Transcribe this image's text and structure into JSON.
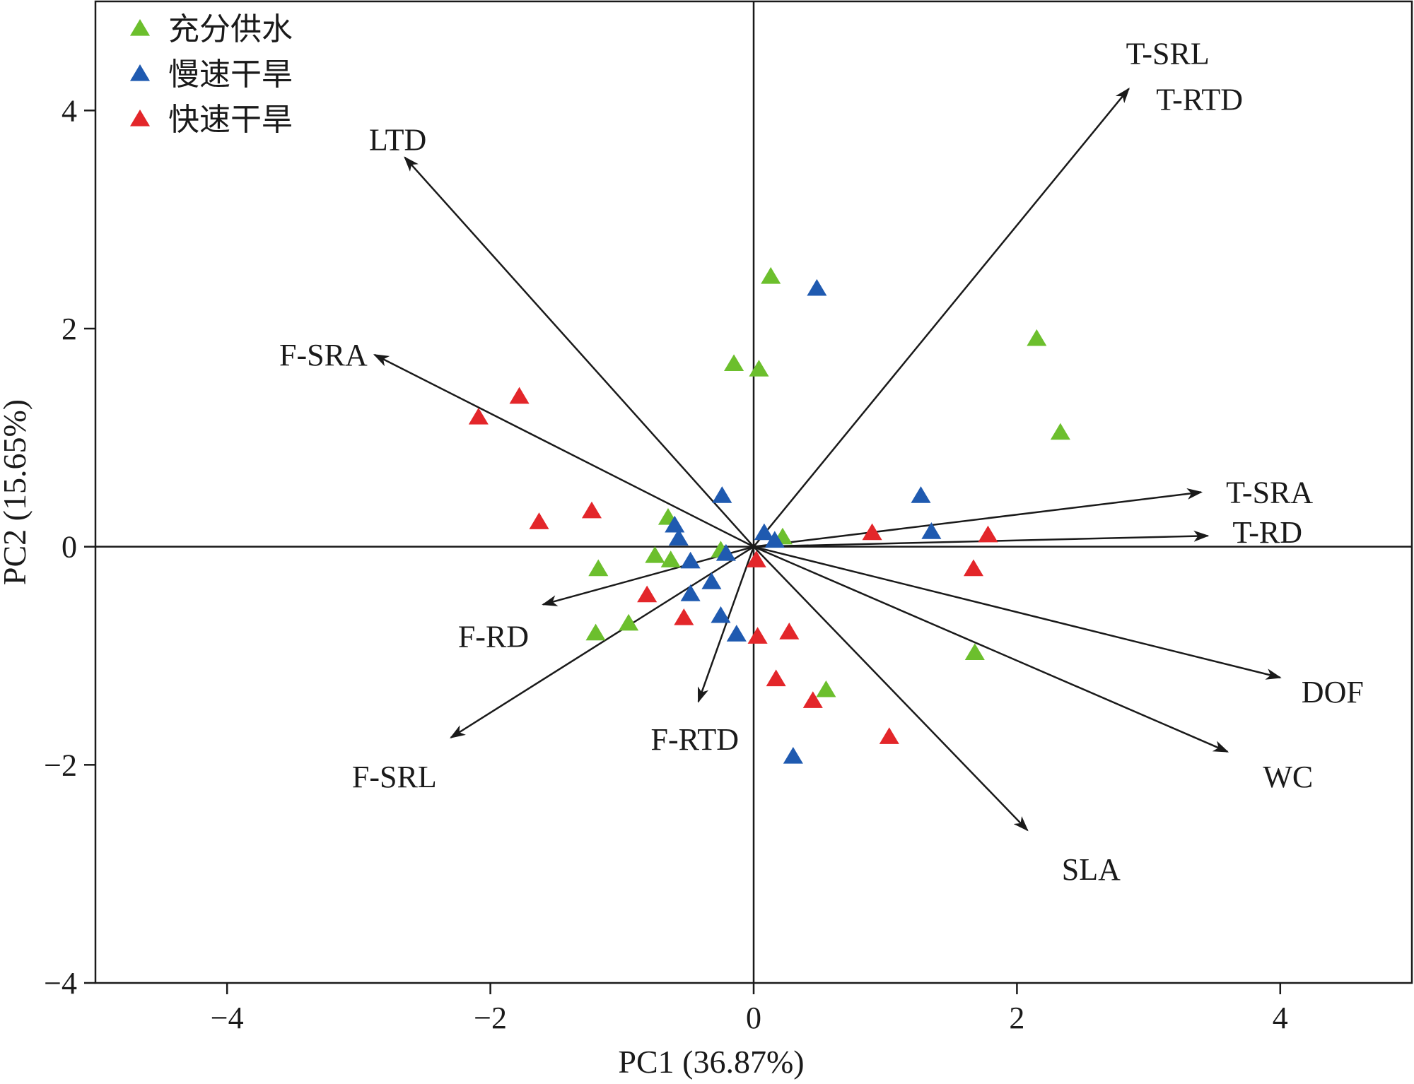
{
  "chart_data": {
    "type": "scatter",
    "subtype": "PCA biplot",
    "xlabel": "PC1 (36.87%)",
    "ylabel": "PC2 (15.65%)",
    "xlim": [
      -5,
      5
    ],
    "ylim": [
      -4,
      5
    ],
    "xticks": [
      -4,
      -2,
      0,
      2,
      4
    ],
    "xtick_labels": [
      "−4",
      "−2",
      "0",
      "2",
      "4"
    ],
    "yticks": [
      -4,
      -2,
      0,
      2,
      4
    ],
    "ytick_labels": [
      "−4",
      "−2",
      "0",
      "2",
      "4"
    ],
    "grid": false,
    "legend_position": "top-left",
    "colors": {
      "green": "#6cbf2d",
      "blue": "#1f5ab0",
      "red": "#e3262a",
      "arrow": "#1a1a1a"
    },
    "series": [
      {
        "name": "充分供水",
        "color": "#6cbf2d",
        "marker": "triangle",
        "points": [
          [
            0.13,
            2.48
          ],
          [
            -0.15,
            1.68
          ],
          [
            0.04,
            1.63
          ],
          [
            2.15,
            1.91
          ],
          [
            2.33,
            1.05
          ],
          [
            -0.65,
            0.27
          ],
          [
            0.22,
            0.09
          ],
          [
            -0.25,
            -0.03
          ],
          [
            -0.75,
            -0.08
          ],
          [
            -0.63,
            -0.12
          ],
          [
            -1.18,
            -0.2
          ],
          [
            -0.95,
            -0.7
          ],
          [
            -1.2,
            -0.79
          ],
          [
            1.68,
            -0.97
          ],
          [
            0.55,
            -1.31
          ]
        ]
      },
      {
        "name": "慢速干旱",
        "color": "#1f5ab0",
        "marker": "triangle",
        "points": [
          [
            0.48,
            2.37
          ],
          [
            -0.24,
            0.47
          ],
          [
            1.27,
            0.47
          ],
          [
            -0.6,
            0.2
          ],
          [
            0.08,
            0.13
          ],
          [
            1.35,
            0.14
          ],
          [
            -0.57,
            0.08
          ],
          [
            0.16,
            0.06
          ],
          [
            -0.21,
            -0.06
          ],
          [
            -0.48,
            -0.13
          ],
          [
            -0.32,
            -0.32
          ],
          [
            -0.48,
            -0.43
          ],
          [
            -0.25,
            -0.63
          ],
          [
            -0.13,
            -0.8
          ],
          [
            0.3,
            -1.92
          ]
        ]
      },
      {
        "name": "快速干旱",
        "color": "#e3262a",
        "marker": "triangle",
        "points": [
          [
            -1.78,
            1.38
          ],
          [
            -2.09,
            1.19
          ],
          [
            -1.23,
            0.33
          ],
          [
            -1.63,
            0.23
          ],
          [
            0.9,
            0.13
          ],
          [
            1.78,
            0.11
          ],
          [
            0.02,
            -0.12
          ],
          [
            1.67,
            -0.2
          ],
          [
            -0.81,
            -0.44
          ],
          [
            -0.53,
            -0.65
          ],
          [
            0.03,
            -0.82
          ],
          [
            0.27,
            -0.78
          ],
          [
            0.17,
            -1.21
          ],
          [
            0.45,
            -1.41
          ],
          [
            1.03,
            -1.74
          ]
        ]
      }
    ],
    "loadings": [
      {
        "label": "T-SRL",
        "x": 2.85,
        "y": 4.2
      },
      {
        "label": "T-RTD",
        "x": 2.85,
        "y": 4.2
      },
      {
        "label": "LTD",
        "x": -2.65,
        "y": 3.57
      },
      {
        "label": "F-SRA",
        "x": -2.88,
        "y": 1.76
      },
      {
        "label": "T-SRA",
        "x": 3.4,
        "y": 0.5
      },
      {
        "label": "T-RD",
        "x": 3.45,
        "y": 0.1
      },
      {
        "label": "F-RD",
        "x": -1.6,
        "y": -0.53
      },
      {
        "label": "F-SRL",
        "x": -2.3,
        "y": -1.75
      },
      {
        "label": "F-RTD",
        "x": -0.42,
        "y": -1.42
      },
      {
        "label": "DOF",
        "x": 4.0,
        "y": -1.2
      },
      {
        "label": "WC",
        "x": 3.6,
        "y": -1.88
      },
      {
        "label": "SLA",
        "x": 2.08,
        "y": -2.6
      }
    ]
  }
}
